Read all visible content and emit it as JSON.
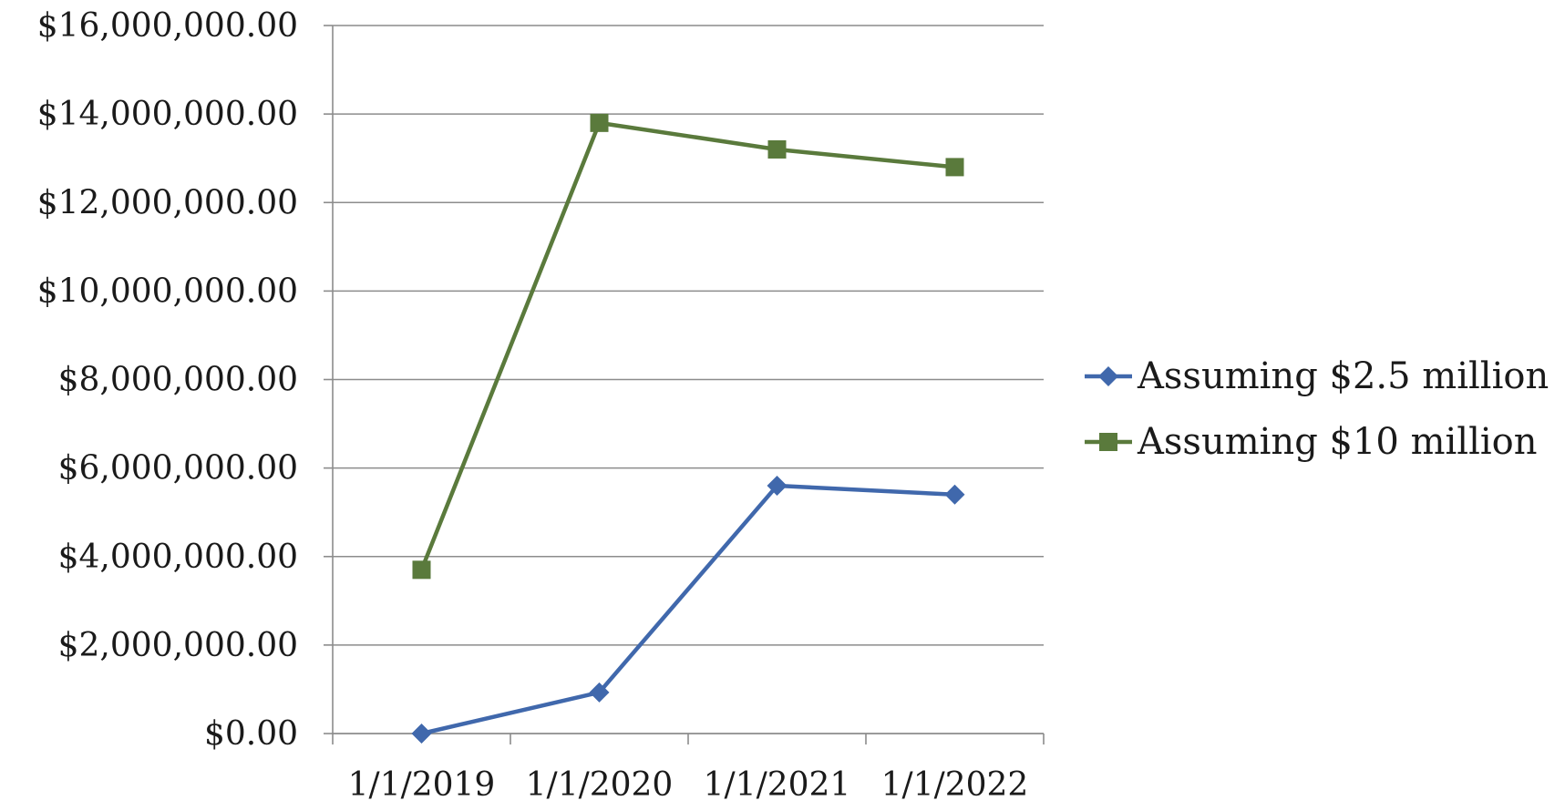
{
  "chart_data": {
    "type": "line",
    "title": "",
    "xlabel": "",
    "ylabel": "",
    "categories": [
      "1/1/2019",
      "1/1/2020",
      "1/1/2021",
      "1/1/2022"
    ],
    "ylim": [
      0,
      16000000
    ],
    "yticks": [
      0,
      2000000,
      4000000,
      6000000,
      8000000,
      10000000,
      12000000,
      14000000,
      16000000
    ],
    "ytick_labels": [
      "$0.00",
      "$2,000,000.00",
      "$4,000,000.00",
      "$6,000,000.00",
      "$8,000,000.00",
      "$10,000,000.00",
      "$12,000,000.00",
      "$14,000,000.00",
      "$16,000,000.00"
    ],
    "grid": true,
    "legend_position": "right",
    "series": [
      {
        "name": "Assuming $2.5 million",
        "color": "#4068ac",
        "marker": "diamond",
        "x": [
          0.5,
          1.5,
          2.5,
          3.5
        ],
        "values": [
          0,
          930000,
          5600000,
          5400000
        ]
      },
      {
        "name": "Assuming $10 million",
        "color": "#5a7a3c",
        "marker": "square",
        "x": [
          0.5,
          1.5,
          2.5,
          3.5
        ],
        "values": [
          3700000,
          13800000,
          13200000,
          12800000
        ]
      }
    ]
  }
}
